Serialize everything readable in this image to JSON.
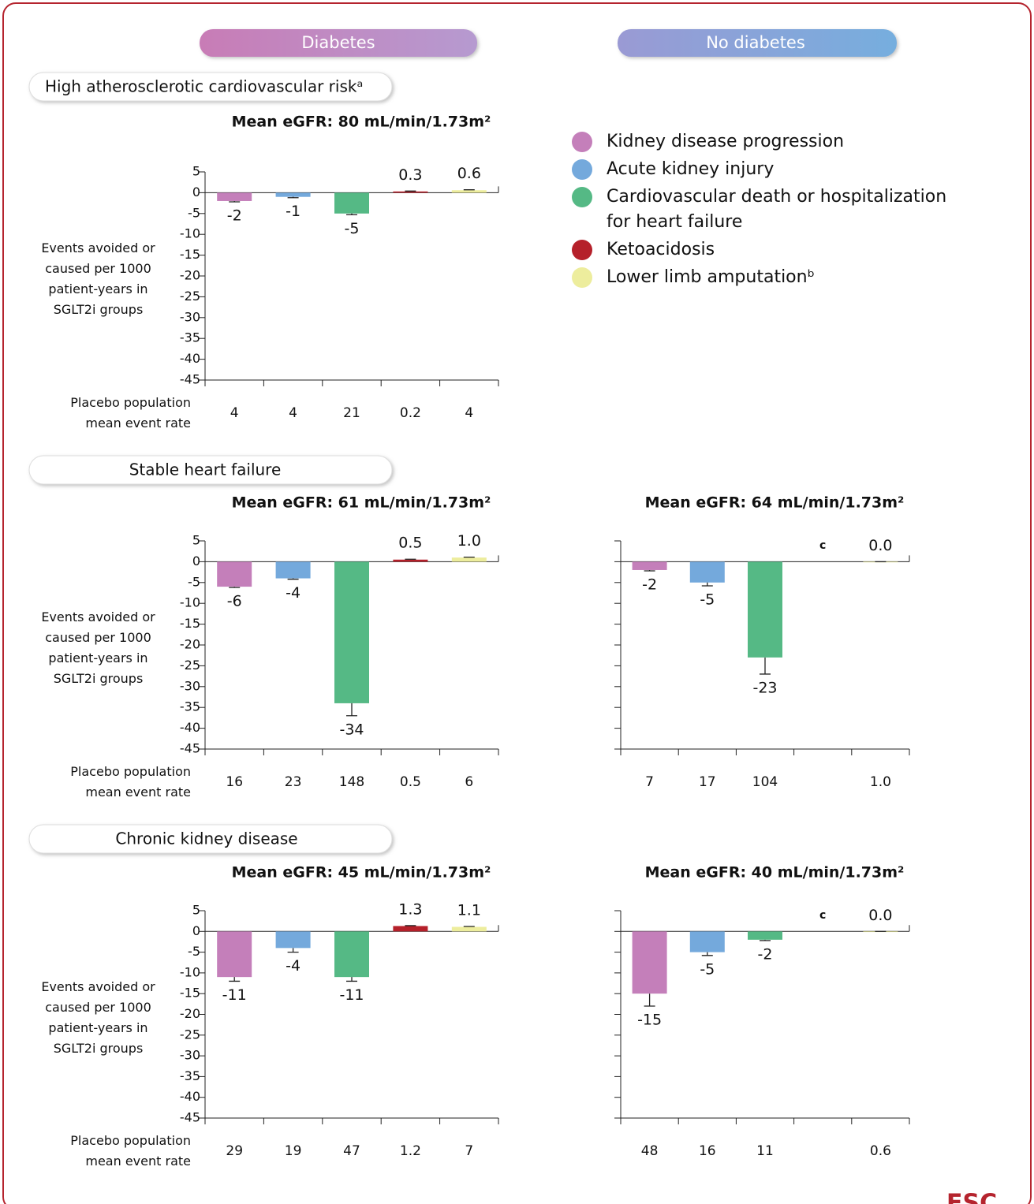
{
  "header": {
    "groups": [
      "Diabetes",
      "No diabetes"
    ]
  },
  "sections": [
    "High atherosclerotic cardiovascular riskᵃ",
    "Stable heart failure",
    "Chronic kidney disease"
  ],
  "legend": [
    {
      "name": "Kidney disease progression",
      "color": "#c47fba"
    },
    {
      "name": "Acute kidney injury",
      "color": "#74a9dc"
    },
    {
      "name": "Cardiovascular death or hospitalization for heart failure",
      "color": "#55b985"
    },
    {
      "name": "Ketoacidosis",
      "color": "#b5202a"
    },
    {
      "name": "Lower limb amputationᵇ",
      "color": "#eded9d"
    }
  ],
  "logo": "ESC",
  "chart_data": [
    {
      "type": "bar",
      "title": "Mean eGFR: 80 mL/min/1.73m²",
      "ylabel": "Events avoided or caused per 1000 patient-years in SGLT2i groups",
      "xlabel": "Placebo population mean event rate",
      "values": [
        -2,
        -1,
        -5,
        0.3,
        0.6
      ],
      "value_labels": [
        "-2",
        "-1",
        "-5",
        "0.3",
        "0.6"
      ],
      "errors": [
        0.2,
        0.2,
        0.3,
        0.1,
        0.1
      ],
      "placebo_rates": [
        "4",
        "4",
        "21",
        "0.2",
        "4"
      ],
      "ylim": [
        -45,
        5
      ],
      "yticks": [
        -45,
        -40,
        -35,
        -30,
        -25,
        -20,
        -15,
        -10,
        -5,
        0,
        5
      ],
      "show_ytick_labels": true
    },
    {
      "type": "bar",
      "title": "Mean eGFR: 61 mL/min/1.73m²",
      "ylabel": "Events avoided or caused per 1000 patient-years in SGLT2i groups",
      "xlabel": "Placebo population mean event rate",
      "values": [
        -6,
        -4,
        -34,
        0.5,
        1.0
      ],
      "value_labels": [
        "-6",
        "-4",
        "-34",
        "0.5",
        "1.0"
      ],
      "errors": [
        0.2,
        0.2,
        3,
        0.1,
        0.1
      ],
      "placebo_rates": [
        "16",
        "23",
        "148",
        "0.5",
        "6"
      ],
      "ylim": [
        -45,
        5
      ],
      "yticks": [
        -45,
        -40,
        -35,
        -30,
        -25,
        -20,
        -15,
        -10,
        -5,
        0,
        5
      ],
      "show_ytick_labels": true
    },
    {
      "type": "bar",
      "title": "Mean eGFR: 64 mL/min/1.73m²",
      "values": [
        -2,
        -5,
        -23,
        null,
        0.0
      ],
      "value_labels": [
        "-2",
        "-5",
        "-23",
        null,
        "0.0"
      ],
      "errors": [
        0.2,
        0.8,
        4,
        null,
        0
      ],
      "placebo_rates": [
        "7",
        "17",
        "104",
        null,
        "1.0"
      ],
      "note": "c",
      "ylim": [
        -45,
        5
      ],
      "yticks": [
        -45,
        -40,
        -35,
        -30,
        -25,
        -20,
        -15,
        -10,
        -5,
        0,
        5
      ],
      "show_ytick_labels": false
    },
    {
      "type": "bar",
      "title": "Mean eGFR: 45 mL/min/1.73m²",
      "ylabel": "Events avoided or caused per 1000 patient-years in SGLT2i groups",
      "xlabel": "Placebo population mean event rate",
      "values": [
        -11,
        -4,
        -11,
        1.3,
        1.1
      ],
      "value_labels": [
        "-11",
        "-4",
        "-11",
        "1.3",
        "1.1"
      ],
      "errors": [
        1,
        1,
        1,
        0.1,
        0.1
      ],
      "placebo_rates": [
        "29",
        "19",
        "47",
        "1.2",
        "7"
      ],
      "ylim": [
        -45,
        5
      ],
      "yticks": [
        -45,
        -40,
        -35,
        -30,
        -25,
        -20,
        -15,
        -10,
        -5,
        0,
        5
      ],
      "show_ytick_labels": true
    },
    {
      "type": "bar",
      "title": "Mean eGFR: 40 mL/min/1.73m²",
      "values": [
        -15,
        -5,
        -2,
        null,
        0.0
      ],
      "value_labels": [
        "-15",
        "-5",
        "-2",
        null,
        "0.0"
      ],
      "errors": [
        3,
        0.8,
        0.2,
        null,
        0
      ],
      "placebo_rates": [
        "48",
        "16",
        "11",
        null,
        "0.6"
      ],
      "note": "c",
      "ylim": [
        -45,
        5
      ],
      "yticks": [
        -45,
        -40,
        -35,
        -30,
        -25,
        -20,
        -15,
        -10,
        -5,
        0,
        5
      ],
      "show_ytick_labels": false
    }
  ]
}
